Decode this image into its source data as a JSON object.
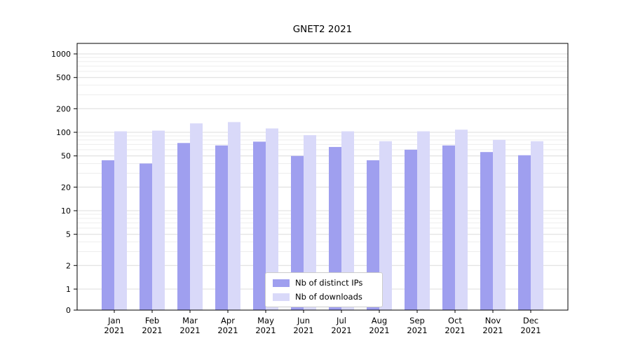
{
  "title": "GNET2 2021",
  "chart_data": {
    "type": "bar",
    "title": "GNET2 2021",
    "scale": "symlog",
    "year": "2021",
    "months": [
      "Jan",
      "Feb",
      "Mar",
      "Apr",
      "May",
      "Jun",
      "Jul",
      "Aug",
      "Sep",
      "Oct",
      "Nov",
      "Dec"
    ],
    "categories": [
      "Jan 2021",
      "Feb 2021",
      "Mar 2021",
      "Apr 2021",
      "May 2021",
      "Jun 2021",
      "Jul 2021",
      "Aug 2021",
      "Sep 2021",
      "Oct 2021",
      "Nov 2021",
      "Dec 2021"
    ],
    "series": [
      {
        "name": "Nb of distinct IPs",
        "color": "#9f9fef",
        "values": [
          44,
          40,
          73,
          68,
          76,
          50,
          65,
          44,
          60,
          68,
          56,
          51
        ]
      },
      {
        "name": "Nb of downloads",
        "color": "#d9d9f9",
        "values": [
          103,
          105,
          130,
          135,
          112,
          92,
          103,
          77,
          103,
          108,
          80,
          77
        ]
      }
    ],
    "yticks": [
      0,
      1,
      2,
      5,
      10,
      20,
      50,
      100,
      200,
      500,
      1000
    ],
    "ylim": [
      0,
      1000
    ],
    "xlabel": "",
    "ylabel": "",
    "grid": true,
    "legend_position": "lower center"
  },
  "colors": {
    "background": "#ffffff",
    "axis": "#000000",
    "grid_major": "#dcdcdc",
    "grid_minor": "#ededed",
    "series_ips": "#9f9fef",
    "series_downloads": "#d9d9f9"
  }
}
